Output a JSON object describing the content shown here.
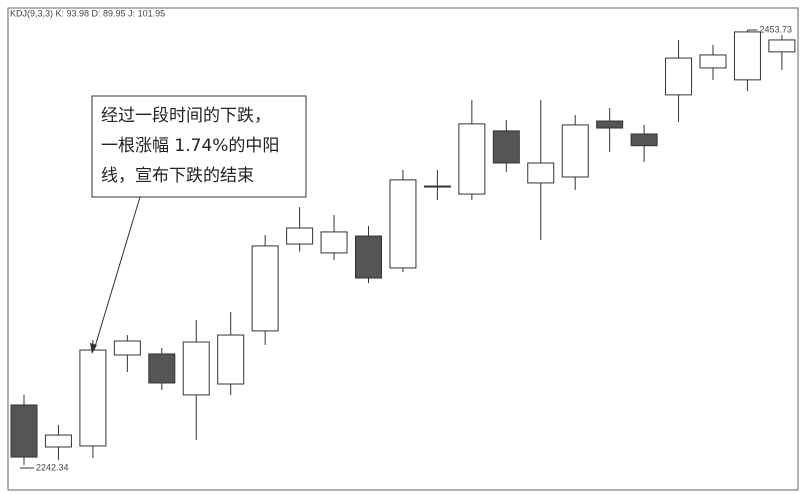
{
  "chart_data": {
    "type": "candlestick",
    "header": "KDJ(9,3,3) K: 93.98 D: 89.95 J: 101.95",
    "annotation": [
      "经过一段时间的下跌，",
      "一根涨幅 1.74%的中阳",
      "线，宣布下跌的结束"
    ],
    "up_color": "#ffffff",
    "down_color": "#555555",
    "open": [
      2271.5,
      2251.1,
      2251.6,
      2295.8,
      2296.3,
      2276.4,
      2281.7,
      2307.5,
      2349.7,
      2345.4,
      2353.6,
      2338.1,
      2377.9,
      2374.0,
      2404.7,
      2379.4,
      2382.3,
      2409.5,
      2403.2,
      2422.2,
      2435.3,
      2429.5,
      2443.1
    ],
    "high": [
      2276.4,
      2261.8,
      2303.1,
      2305.5,
      2299.2,
      2312.8,
      2316.7,
      2354.1,
      2367.7,
      2363.8,
      2358.5,
      2385.7,
      2385.7,
      2419.7,
      2410.0,
      2419.7,
      2412.4,
      2415.8,
      2407.6,
      2448.9,
      2446.5,
      2453.73,
      2451.3
    ],
    "low": [
      2242.34,
      2244.8,
      2245.7,
      2287.5,
      2278.8,
      2254.5,
      2276.4,
      2300.7,
      2346.0,
      2341.9,
      2330.8,
      2336.1,
      2371.1,
      2371.1,
      2384.7,
      2351.7,
      2376.0,
      2394.5,
      2389.6,
      2409.0,
      2429.5,
      2424.0,
      2434.3
    ],
    "close": [
      2246.2,
      2256.9,
      2298.2,
      2302.6,
      2282.2,
      2302.1,
      2305.5,
      2348.8,
      2357.5,
      2355.6,
      2333.2,
      2380.9,
      2377.9,
      2408.1,
      2389.1,
      2389.1,
      2407.6,
      2406.1,
      2397.5,
      2440.1,
      2441.6,
      2452.8,
      2448.9
    ]
  }
}
